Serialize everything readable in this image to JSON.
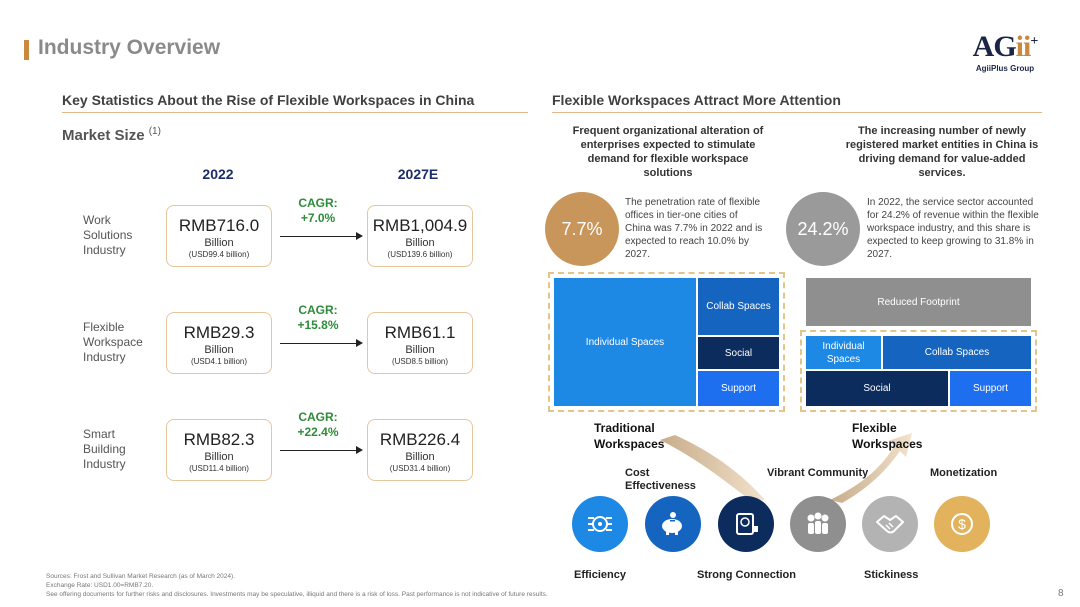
{
  "header": {
    "title": "Industry Overview",
    "logo_text_main": "AG",
    "logo_text_accent": "ii",
    "logo_sup": "+",
    "logo_sub": "AgiiPlus Group"
  },
  "left": {
    "section_title": "Key Statistics About the Rise of Flexible Workspaces in China",
    "subtitle": "Market Size",
    "subtitle_note": "(1)",
    "year_from": "2022",
    "year_to": "2027E",
    "rows": [
      {
        "label": "Work Solutions Industry",
        "from_value": "RMB716.0",
        "from_unit": "Billion",
        "from_usd": "(USD99.4 billion)",
        "cagr_label": "CAGR:",
        "cagr_value": "+7.0%",
        "to_value": "RMB1,004.9",
        "to_unit": "Billion",
        "to_usd": "(USD139.6 billion)"
      },
      {
        "label": "Flexible Workspace Industry",
        "from_value": "RMB29.3",
        "from_unit": "Billion",
        "from_usd": "(USD4.1 billion)",
        "cagr_label": "CAGR:",
        "cagr_value": "+15.8%",
        "to_value": "RMB61.1",
        "to_unit": "Billion",
        "to_usd": "(USD8.5 billion)"
      },
      {
        "label": "Smart Building Industry",
        "from_value": "RMB82.3",
        "from_unit": "Billion",
        "from_usd": "(USD11.4 billion)",
        "cagr_label": "CAGR:",
        "cagr_value": "+22.4%",
        "to_value": "RMB226.4",
        "to_unit": "Billion",
        "to_usd": "(USD31.4 billion)"
      }
    ]
  },
  "right": {
    "section_title": "Flexible Workspaces Attract More Attention",
    "col1_head": "Frequent organizational alteration of enterprises expected to stimulate demand for flexible workspace solutions",
    "col2_head": "The increasing number of newly registered market entities in China is driving demand for value-added services.",
    "stat1_value": "7.7%",
    "stat1_desc": "The penetration rate of flexible offices in tier-one cities of China was 7.7% in 2022 and is expected to reach 10.0% by 2027.",
    "stat2_value": "24.2%",
    "stat2_desc": "In 2022, the service sector accounted for 24.2% of revenue within the flexible workspace industry, and this share is expected to keep growing to 31.8% in 2027.",
    "traditional_tiles": {
      "individual": "Individual Spaces",
      "collab": "Collab Spaces",
      "social": "Social",
      "support": "Support"
    },
    "flexible_tiles": {
      "reduced": "Reduced Footprint",
      "individual": "Individual Spaces",
      "collab": "Collab Spaces",
      "social": "Social",
      "support": "Support"
    },
    "traditional_label": "Traditional Workspaces",
    "flexible_label": "Flexible Workspaces",
    "features_top": {
      "cost": "Cost Effectiveness",
      "community": "Vibrant Community",
      "monetization": "Monetization"
    },
    "features_bottom": {
      "efficiency": "Efficiency",
      "connection": "Strong Connection",
      "stickiness": "Stickiness"
    },
    "colors": {
      "blue": "#1e88e5",
      "navy": "#0d2c5e",
      "gray": "#8f8f8f",
      "gold": "#e2b35c"
    }
  },
  "footer": {
    "source": "Sources: Frost and Sullivan Market Research (as of March 2024).",
    "exchange": "Exchange Rate: USD1.00=RMB7.20.",
    "disclaimer": "See offering documents for further risks and disclosures. Investments may be speculative, illiquid and there is a risk of loss. Past performance is not indicative of future results.",
    "page": "8"
  }
}
